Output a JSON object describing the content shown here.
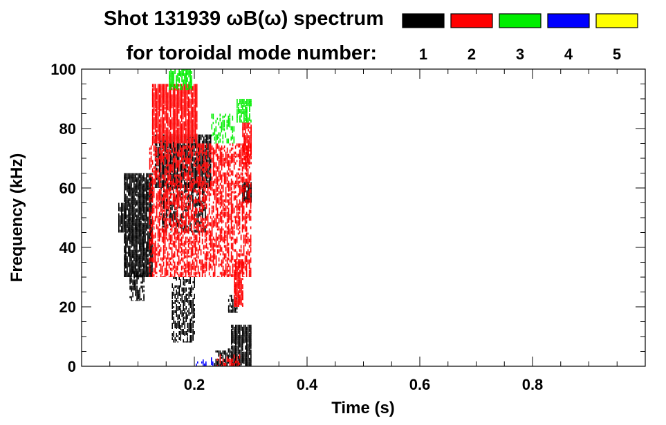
{
  "chart_data": {
    "type": "heatmap",
    "title_line1": "Shot 131939 ωB(ω) spectrum",
    "title_line2": "for toroidal mode number:",
    "xlabel": "Time (s)",
    "ylabel": "Frequency (kHz)",
    "xlim": [
      0.0,
      1.0
    ],
    "ylim": [
      0,
      100
    ],
    "x_ticks": [
      0.2,
      0.4,
      0.6,
      0.8
    ],
    "x_tick_labels": [
      "0.2",
      "0.4",
      "0.6",
      "0.8"
    ],
    "y_ticks": [
      0,
      20,
      40,
      60,
      80,
      100
    ],
    "y_tick_labels": [
      "0",
      "20",
      "40",
      "60",
      "80",
      "100"
    ],
    "legend": [
      {
        "mode": "1",
        "color": "#000000"
      },
      {
        "mode": "2",
        "color": "#ff0000"
      },
      {
        "mode": "3",
        "color": "#00ee00"
      },
      {
        "mode": "4",
        "color": "#0000ff"
      },
      {
        "mode": "5",
        "color": "#ffff00"
      }
    ],
    "regions": [
      {
        "mode": "1",
        "t": [
          0.065,
          0.075
        ],
        "f": [
          45,
          55
        ],
        "density": 0.9
      },
      {
        "mode": "1",
        "t": [
          0.075,
          0.125
        ],
        "f": [
          30,
          65
        ],
        "density": 0.8
      },
      {
        "mode": "1",
        "t": [
          0.085,
          0.11
        ],
        "f": [
          22,
          32
        ],
        "density": 0.5
      },
      {
        "mode": "1",
        "t": [
          0.13,
          0.23
        ],
        "f": [
          60,
          78
        ],
        "density": 0.75
      },
      {
        "mode": "1",
        "t": [
          0.14,
          0.22
        ],
        "f": [
          45,
          62
        ],
        "density": 0.35
      },
      {
        "mode": "1",
        "t": [
          0.16,
          0.2
        ],
        "f": [
          8,
          30
        ],
        "density": 0.35
      },
      {
        "mode": "1",
        "t": [
          0.235,
          0.265
        ],
        "f": [
          0,
          6
        ],
        "density": 0.5
      },
      {
        "mode": "1",
        "t": [
          0.265,
          0.3
        ],
        "f": [
          0,
          14
        ],
        "density": 0.8
      },
      {
        "mode": "1",
        "t": [
          0.285,
          0.3
        ],
        "f": [
          55,
          62
        ],
        "density": 0.85
      },
      {
        "mode": "1",
        "t": [
          0.26,
          0.275
        ],
        "f": [
          18,
          24
        ],
        "density": 0.5
      },
      {
        "mode": "2",
        "t": [
          0.125,
          0.205
        ],
        "f": [
          75,
          95
        ],
        "density": 0.8
      },
      {
        "mode": "2",
        "t": [
          0.12,
          0.3
        ],
        "f": [
          30,
          75
        ],
        "density": 0.4
      },
      {
        "mode": "2",
        "t": [
          0.27,
          0.285
        ],
        "f": [
          20,
          36
        ],
        "density": 0.75
      },
      {
        "mode": "2",
        "t": [
          0.285,
          0.3
        ],
        "f": [
          68,
          82
        ],
        "density": 0.7
      },
      {
        "mode": "2",
        "t": [
          0.24,
          0.28
        ],
        "f": [
          0,
          4
        ],
        "density": 0.3
      },
      {
        "mode": "3",
        "t": [
          0.155,
          0.195
        ],
        "f": [
          93,
          100
        ],
        "density": 0.6
      },
      {
        "mode": "3",
        "t": [
          0.23,
          0.27
        ],
        "f": [
          75,
          85
        ],
        "density": 0.3
      },
      {
        "mode": "3",
        "t": [
          0.275,
          0.3
        ],
        "f": [
          82,
          90
        ],
        "density": 0.4
      },
      {
        "mode": "4",
        "t": [
          0.2,
          0.24
        ],
        "f": [
          0,
          3
        ],
        "density": 0.15
      }
    ]
  }
}
